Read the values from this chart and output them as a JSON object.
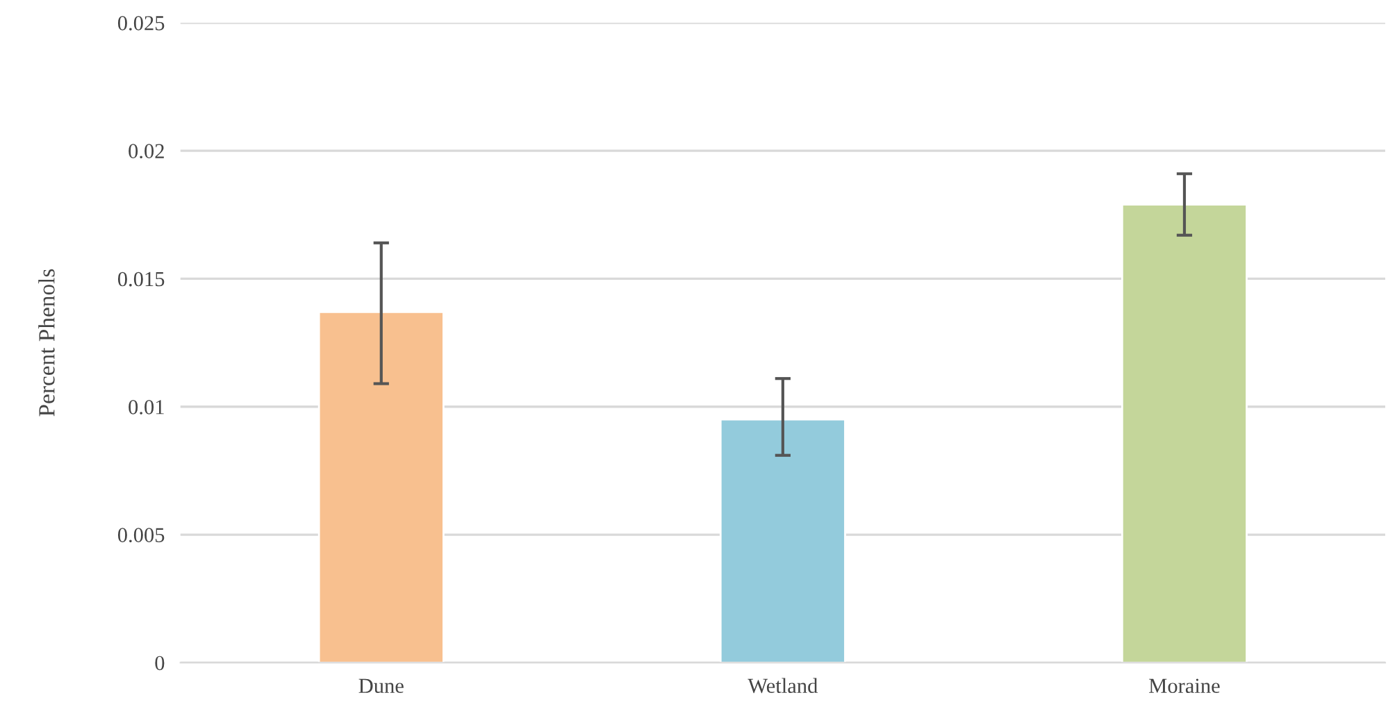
{
  "chart_data": {
    "type": "bar",
    "ylabel": "Percent Phenols",
    "categories": [
      "Dune",
      "Wetland",
      "Moraine"
    ],
    "values": [
      0.0137,
      0.0095,
      0.0179
    ],
    "colors": [
      "#f8c08f",
      "#93cbdc",
      "#c4d69a"
    ],
    "errors": [
      [
        0.0109,
        0.0164
      ],
      [
        0.0081,
        0.0111
      ],
      [
        0.0167,
        0.0191
      ]
    ],
    "ylim": [
      0,
      0.025
    ],
    "yticks": [
      0,
      0.005,
      0.01,
      0.015,
      0.02,
      0.025
    ],
    "grid": "y",
    "legend": false
  }
}
